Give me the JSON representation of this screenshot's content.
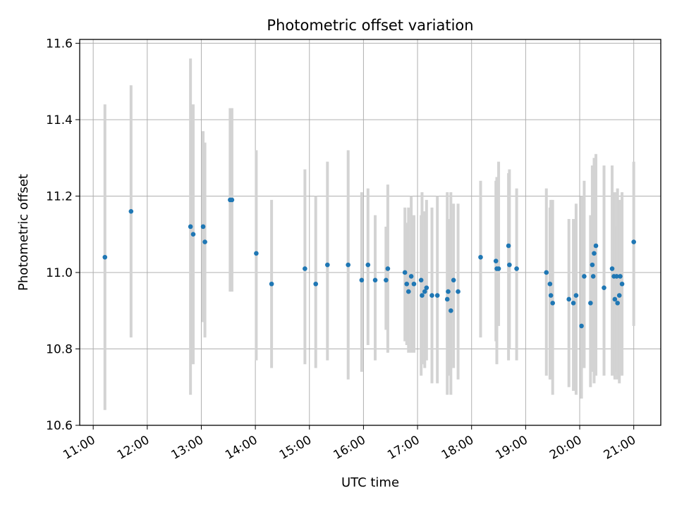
{
  "chart_data": {
    "type": "scatter",
    "title": "Photometric offset variation",
    "xlabel": "UTC time",
    "ylabel": "Photometric offset",
    "xlim": [
      "10:45",
      "21:30"
    ],
    "ylim": [
      10.6,
      11.61
    ],
    "x_ticks": [
      "11:00",
      "12:00",
      "13:00",
      "14:00",
      "15:00",
      "16:00",
      "17:00",
      "18:00",
      "19:00",
      "20:00",
      "21:00"
    ],
    "y_ticks": [
      "10.6",
      "10.8",
      "11.0",
      "11.2",
      "11.4",
      "11.6"
    ],
    "grid": true,
    "colors": {
      "points": "#1f77b4",
      "errorbars": "#d3d3d3",
      "grid": "#b0b0b0"
    },
    "series": [
      {
        "x": [
          "11:13",
          "11:42",
          "12:48",
          "12:51",
          "13:02",
          "13:04",
          "13:32",
          "13:34",
          "14:01",
          "14:18",
          "14:55",
          "15:07",
          "15:20",
          "15:43",
          "15:58",
          "16:05",
          "16:13",
          "16:25",
          "16:27",
          "16:46",
          "16:48",
          "16:50",
          "16:53",
          "16:56",
          "17:04",
          "17:05",
          "17:08",
          "17:10",
          "17:16",
          "17:22",
          "17:33",
          "17:34",
          "17:37",
          "17:40",
          "17:45",
          "18:10",
          "18:27",
          "18:28",
          "18:30",
          "18:41",
          "18:42",
          "18:50",
          "19:23",
          "19:27",
          "19:28",
          "19:30",
          "19:48",
          "19:53",
          "19:56",
          "20:02",
          "20:05",
          "20:12",
          "20:14",
          "20:15",
          "20:16",
          "20:18",
          "20:27",
          "20:36",
          "20:38",
          "20:39",
          "20:41",
          "20:42",
          "20:44",
          "20:45",
          "20:47",
          "21:00"
        ],
        "y": [
          11.04,
          11.16,
          11.12,
          11.1,
          11.12,
          11.08,
          11.19,
          11.19,
          11.05,
          10.97,
          11.01,
          10.97,
          11.02,
          11.02,
          10.98,
          11.02,
          10.98,
          10.98,
          11.01,
          11.0,
          10.97,
          10.95,
          10.99,
          10.97,
          10.98,
          10.94,
          10.95,
          10.96,
          10.94,
          10.94,
          10.93,
          10.95,
          10.9,
          10.98,
          10.95,
          11.04,
          11.03,
          11.01,
          11.01,
          11.07,
          11.02,
          11.01,
          11.0,
          10.97,
          10.94,
          10.92,
          10.93,
          10.92,
          10.94,
          10.86,
          10.99,
          10.92,
          11.02,
          10.99,
          11.05,
          11.07,
          10.96,
          11.01,
          10.99,
          10.93,
          10.99,
          10.92,
          10.94,
          10.99,
          10.97,
          11.08
        ],
        "yerr_low": [
          10.64,
          10.83,
          10.68,
          10.76,
          10.87,
          10.83,
          10.95,
          10.95,
          10.77,
          10.75,
          10.76,
          10.75,
          10.77,
          10.72,
          10.74,
          10.81,
          10.77,
          10.85,
          10.79,
          10.82,
          10.81,
          10.79,
          10.79,
          10.79,
          10.73,
          10.76,
          10.75,
          10.77,
          10.71,
          10.71,
          10.68,
          10.73,
          10.68,
          10.75,
          10.72,
          10.83,
          10.82,
          10.76,
          10.86,
          10.77,
          10.8,
          10.77,
          10.73,
          10.72,
          10.72,
          10.68,
          10.7,
          10.69,
          10.68,
          10.67,
          10.75,
          10.7,
          10.74,
          10.75,
          10.71,
          10.73,
          10.73,
          10.73,
          10.77,
          10.72,
          10.74,
          10.72,
          10.71,
          10.76,
          10.73,
          10.86
        ],
        "yerr_high": [
          11.44,
          11.49,
          11.56,
          11.44,
          11.37,
          11.34,
          11.43,
          11.43,
          11.32,
          11.19,
          11.27,
          11.2,
          11.29,
          11.32,
          11.21,
          11.22,
          11.15,
          11.12,
          11.23,
          11.17,
          11.13,
          11.17,
          11.2,
          11.15,
          11.15,
          11.21,
          11.16,
          11.19,
          11.17,
          11.2,
          11.21,
          11.14,
          11.21,
          11.18,
          11.18,
          11.24,
          11.24,
          11.25,
          11.29,
          11.26,
          11.27,
          11.22,
          11.22,
          11.17,
          11.19,
          11.19,
          11.14,
          11.14,
          11.18,
          11.2,
          11.24,
          11.15,
          11.28,
          11.24,
          11.3,
          11.31,
          11.28,
          11.28,
          11.17,
          11.21,
          11.12,
          11.22,
          11.19,
          11.14,
          11.21,
          11.29
        ]
      }
    ]
  }
}
